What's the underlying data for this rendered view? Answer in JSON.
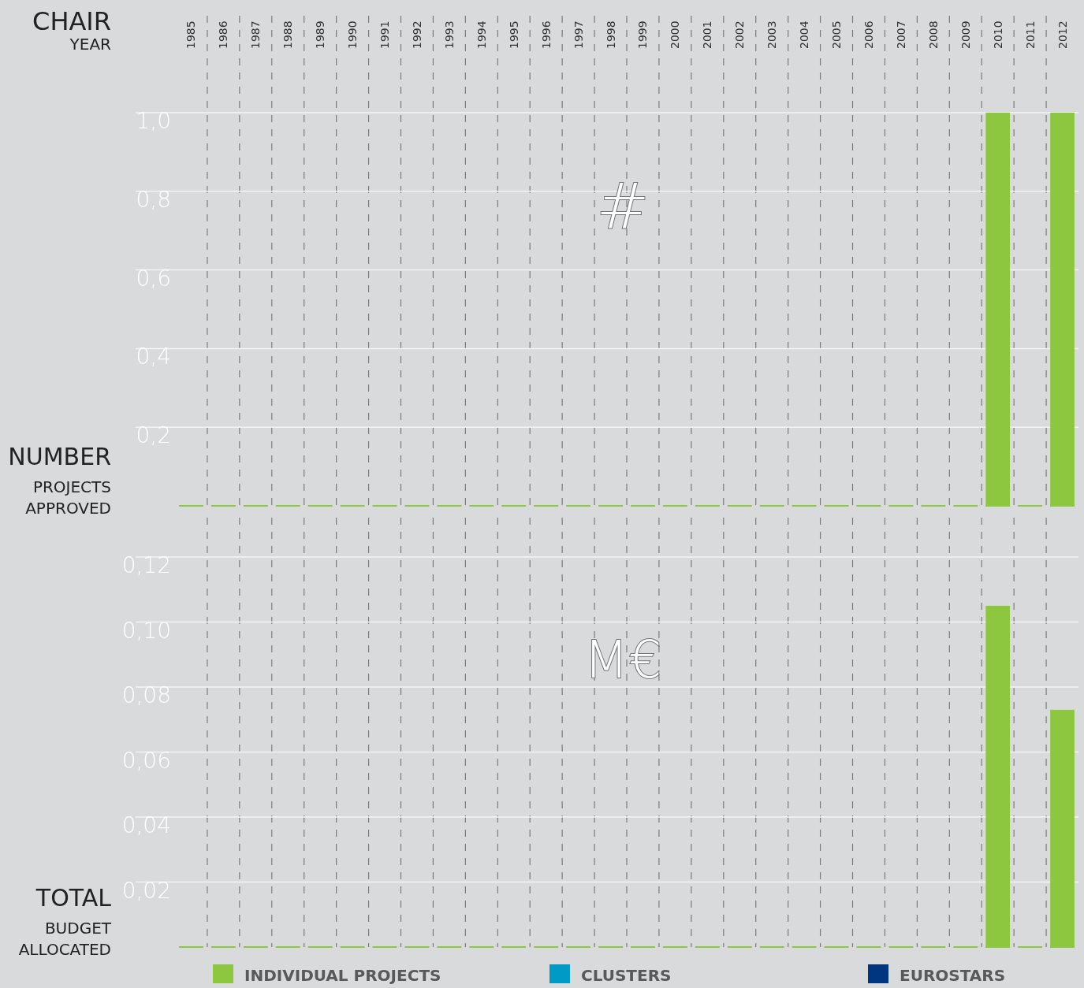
{
  "chart_data": [
    {
      "type": "bar",
      "title": "CHAIR",
      "xlabel": "YEAR",
      "ylabel": "NUMBER PROJECTS APPROVED",
      "annotations": [
        "#"
      ],
      "categories": [
        "1985",
        "1986",
        "1987",
        "1988",
        "1989",
        "1990",
        "1991",
        "1992",
        "1993",
        "1994",
        "1995",
        "1996",
        "1997",
        "1998",
        "1999",
        "2000",
        "2001",
        "2002",
        "2003",
        "2004",
        "2005",
        "2006",
        "2007",
        "2008",
        "2009",
        "2010",
        "2011",
        "2012"
      ],
      "series": [
        {
          "color": "#8dc63f",
          "values": [
            0,
            0,
            0,
            0,
            0,
            0,
            0,
            0,
            0,
            0,
            0,
            0,
            0,
            0,
            0,
            0,
            0,
            0,
            0,
            0,
            0,
            0,
            0,
            0,
            0,
            1,
            0,
            1
          ]
        }
      ],
      "ylim": [
        0,
        1.0
      ],
      "yticks": [
        {
          "value": 0.2,
          "label": "0,2"
        },
        {
          "value": 0.4,
          "label": "0,4"
        },
        {
          "value": 0.6,
          "label": "0,6"
        },
        {
          "value": 0.8,
          "label": "0,8"
        },
        {
          "value": 1.0,
          "label": "1,0"
        }
      ],
      "grid": true
    },
    {
      "type": "bar",
      "ylabel": "TOTAL BUDGET ALLOCATED",
      "annotations": [
        "M€"
      ],
      "categories": [
        "1985",
        "1986",
        "1987",
        "1988",
        "1989",
        "1990",
        "1991",
        "1992",
        "1993",
        "1994",
        "1995",
        "1996",
        "1997",
        "1998",
        "1999",
        "2000",
        "2001",
        "2002",
        "2003",
        "2004",
        "2005",
        "2006",
        "2007",
        "2008",
        "2009",
        "2010",
        "2011",
        "2012"
      ],
      "series": [
        {
          "name": "INDIVIDUAL PROJECTS",
          "color": "#8dc63f",
          "values": [
            0,
            0,
            0,
            0,
            0,
            0,
            0,
            0,
            0,
            0,
            0,
            0,
            0,
            0,
            0,
            0,
            0,
            0,
            0,
            0,
            0,
            0,
            0,
            0,
            0,
            0.105,
            0,
            0.073
          ]
        },
        {
          "name": "CLUSTERS",
          "color": "#009ac7",
          "values": [
            0,
            0,
            0,
            0,
            0,
            0,
            0,
            0,
            0,
            0,
            0,
            0,
            0,
            0,
            0,
            0,
            0,
            0,
            0,
            0,
            0,
            0,
            0,
            0,
            0,
            0,
            0,
            0
          ]
        },
        {
          "name": "EUROSTARS",
          "color": "#003580",
          "values": [
            0,
            0,
            0,
            0,
            0,
            0,
            0,
            0,
            0,
            0,
            0,
            0,
            0,
            0,
            0,
            0,
            0,
            0,
            0,
            0,
            0,
            0,
            0,
            0,
            0,
            0,
            0,
            0
          ]
        }
      ],
      "ylim": [
        0,
        0.12
      ],
      "yticks": [
        {
          "value": 0.02,
          "label": "0,02"
        },
        {
          "value": 0.04,
          "label": "0,04"
        },
        {
          "value": 0.06,
          "label": "0,06"
        },
        {
          "value": 0.08,
          "label": "0,08"
        },
        {
          "value": 0.1,
          "label": "0,10"
        },
        {
          "value": 0.12,
          "label": "0,12"
        }
      ],
      "grid": true,
      "tick_labels": "y",
      "legend": "bottom"
    }
  ]
}
